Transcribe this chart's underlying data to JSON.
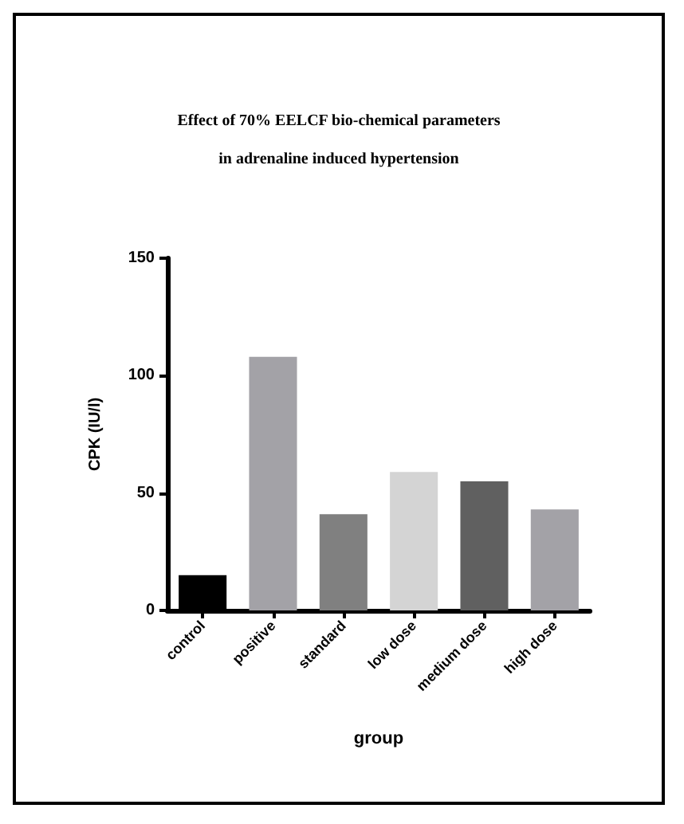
{
  "chart_data": {
    "type": "bar",
    "title": "Effect of 70% EELCF bio-chemical parameters\n\nin adrenaline induced hypertension",
    "xlabel": "group",
    "ylabel": "CPK (IU/l)",
    "categories": [
      "control",
      "positive",
      "standard",
      "low dose",
      "medium dose",
      "high dose"
    ],
    "values": [
      15,
      108,
      41,
      59,
      55,
      43
    ],
    "colors": [
      "#000000",
      "#a3a2a7",
      "#808080",
      "#d4d4d4",
      "#606060",
      "#a3a2a7"
    ],
    "ylim": [
      0,
      150
    ],
    "yticks": [
      0,
      50,
      100,
      150
    ],
    "grid": false
  }
}
